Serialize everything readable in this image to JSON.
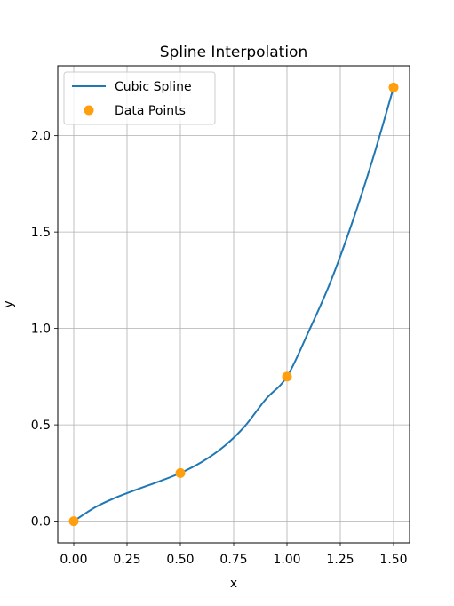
{
  "chart_data": {
    "type": "line",
    "title": "Spline Interpolation",
    "xlabel": "x",
    "ylabel": "y",
    "xlim": [
      -0.075,
      1.575
    ],
    "ylim": [
      -0.1125,
      2.3625
    ],
    "xticks": [
      0.0,
      0.25,
      0.5,
      0.75,
      1.0,
      1.25,
      1.5
    ],
    "xtick_labels": [
      "0.00",
      "0.25",
      "0.50",
      "0.75",
      "1.00",
      "1.25",
      "1.50"
    ],
    "yticks": [
      0.0,
      0.5,
      1.0,
      1.5,
      2.0
    ],
    "ytick_labels": [
      "0.0",
      "0.5",
      "1.0",
      "1.5",
      "2.0"
    ],
    "grid": true,
    "legend": "top-left",
    "colors": {
      "spline": "#1f77b4",
      "points": "#ff9f0e"
    },
    "series": [
      {
        "name": "Cubic Spline",
        "kind": "line",
        "x": [
          0.0,
          0.1,
          0.2,
          0.3,
          0.4,
          0.5,
          0.6,
          0.7,
          0.8,
          0.9,
          1.0,
          1.1,
          1.2,
          1.3,
          1.4,
          1.5
        ],
        "y": [
          0.0,
          0.072,
          0.124,
          0.166,
          0.206,
          0.25,
          0.307,
          0.384,
          0.49,
          0.632,
          0.75,
          0.98,
          1.23,
          1.53,
          1.87,
          2.25
        ]
      },
      {
        "name": "Data Points",
        "kind": "scatter",
        "x": [
          0.0,
          0.5,
          1.0,
          1.5
        ],
        "y": [
          0.0,
          0.25,
          0.75,
          2.25
        ]
      }
    ]
  }
}
